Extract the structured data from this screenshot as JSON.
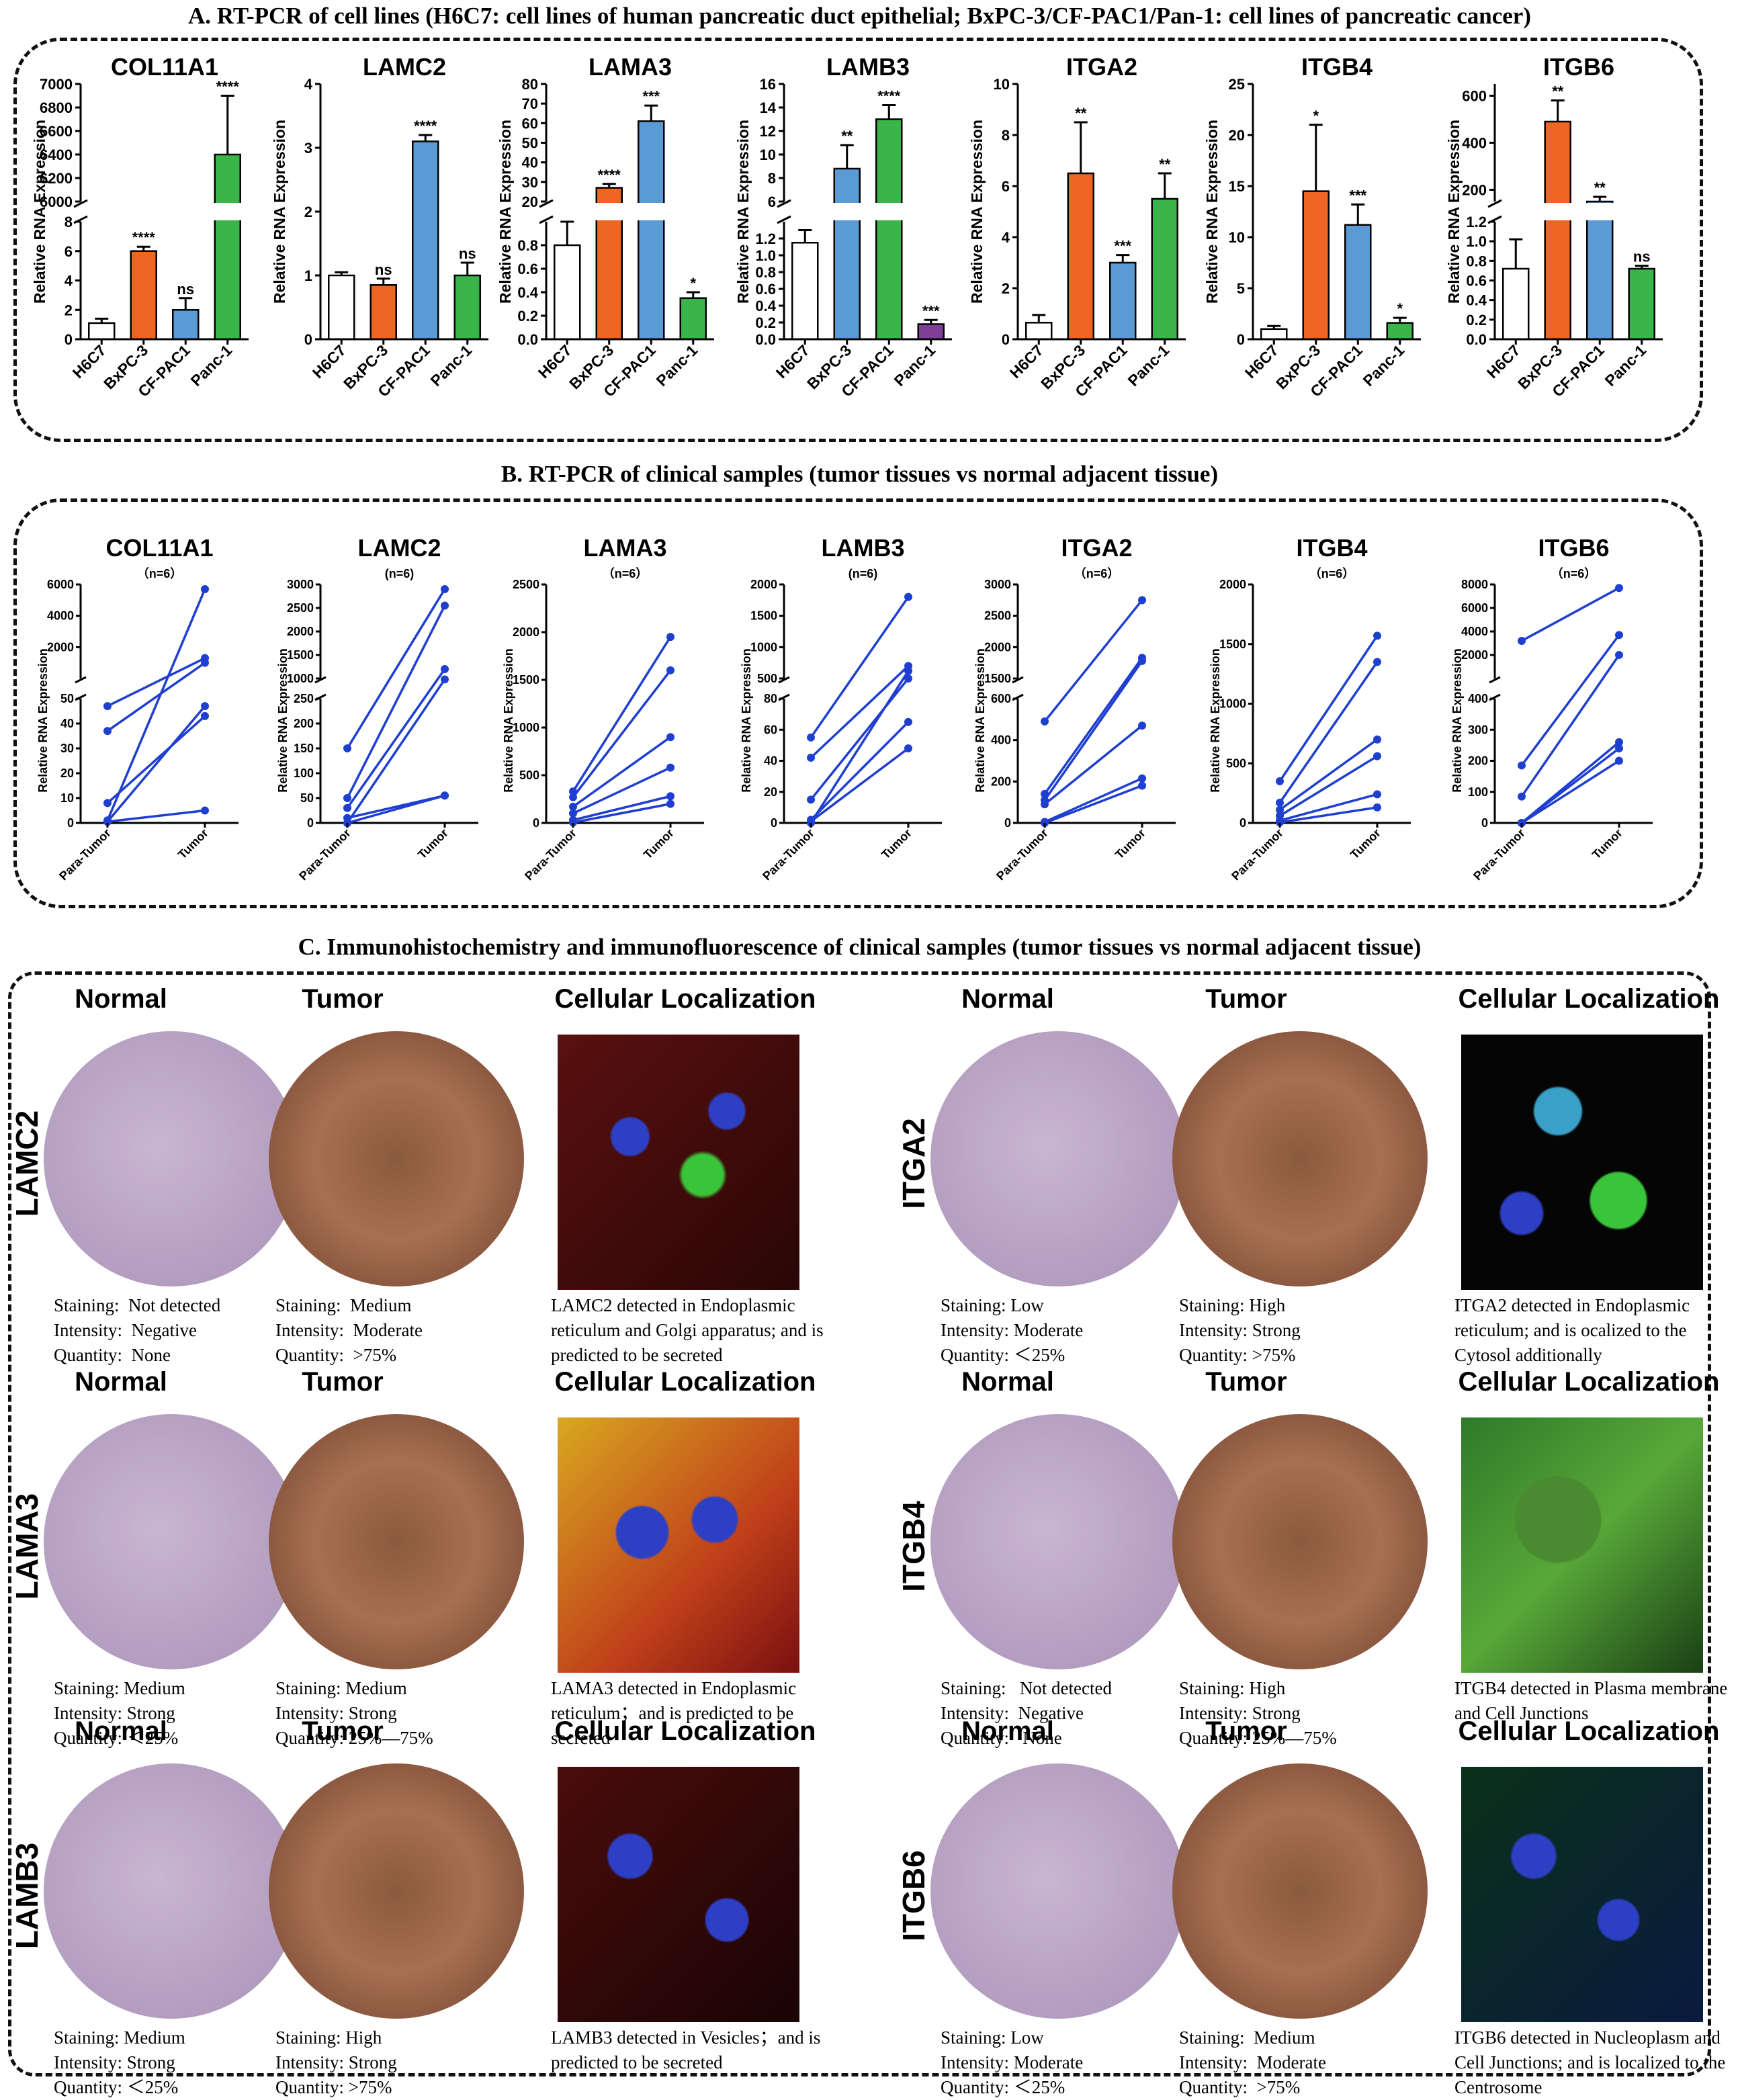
{
  "sections": {
    "a_title": "A. RT-PCR of cell lines (H6C7: cell lines of human pancreatic duct epithelial; BxPC-3/CF-PAC1/Pan-1: cell lines of pancreatic cancer)",
    "b_title": "B. RT-PCR of clinical samples (tumor tissues vs normal adjacent tissue)",
    "c_title": "C. Immunohistochemistry and immunofluorescence of clinical samples (tumor tissues vs normal adjacent tissue)"
  },
  "chart_data": [
    {
      "type": "bar",
      "panel": "A",
      "title": "COL11A1",
      "ylabel": "Relative RNA Expression",
      "categories": [
        "H6C7",
        "BxPC-3",
        "CF-PAC1",
        "Panc-1"
      ],
      "values": [
        1.1,
        6.0,
        2.0,
        6400
      ],
      "errors": [
        0.3,
        0.3,
        0.8,
        500
      ],
      "significance": [
        "",
        "****",
        "ns",
        "****"
      ],
      "colors": [
        "#ffffff",
        "#ef6524",
        "#5b9bd5",
        "#3ab54a"
      ],
      "broken_axis": {
        "lower_range": [
          0,
          8
        ],
        "lower_ticks": [
          "0",
          "2",
          "4",
          "6",
          "8"
        ],
        "upper_range": [
          6000,
          7000
        ],
        "upper_ticks": [
          "6000",
          "6200",
          "6400",
          "6600",
          "6800",
          "7000"
        ]
      }
    },
    {
      "type": "bar",
      "panel": "A",
      "title": "LAMC2",
      "ylabel": "Relative RNA Expression",
      "categories": [
        "H6C7",
        "BxPC-3",
        "CF-PAC1",
        "Panc-1"
      ],
      "values": [
        1.0,
        0.85,
        3.1,
        1.0
      ],
      "errors": [
        0.05,
        0.1,
        0.1,
        0.2
      ],
      "significance": [
        "",
        "ns",
        "****",
        "ns"
      ],
      "colors": [
        "#ffffff",
        "#ef6524",
        "#5b9bd5",
        "#3ab54a"
      ],
      "ylim": [
        0,
        4
      ],
      "ticks": [
        "0",
        "1",
        "2",
        "3",
        "4"
      ]
    },
    {
      "type": "bar",
      "panel": "A",
      "title": "LAMA3",
      "ylabel": "Relative RNA Expression",
      "categories": [
        "H6C7",
        "BxPC-3",
        "CF-PAC1",
        "Panc-1"
      ],
      "values": [
        0.8,
        27,
        61,
        0.35
      ],
      "errors": [
        0.2,
        2,
        8,
        0.05
      ],
      "significance": [
        "",
        "****",
        "***",
        "*"
      ],
      "colors": [
        "#ffffff",
        "#ef6524",
        "#5b9bd5",
        "#3ab54a"
      ],
      "broken_axis": {
        "lower_range": [
          0,
          1.0
        ],
        "lower_ticks": [
          "0.0",
          "0.2",
          "0.4",
          "0.6",
          "0.8"
        ],
        "upper_range": [
          20,
          80
        ],
        "upper_ticks": [
          "20",
          "30",
          "40",
          "50",
          "60",
          "70",
          "80"
        ]
      }
    },
    {
      "type": "bar",
      "panel": "A",
      "title": "LAMB3",
      "ylabel": "Relative RNA Expression",
      "categories": [
        "H6C7",
        "BxPC-3",
        "CF-PAC1",
        "Panc-1"
      ],
      "values": [
        1.15,
        8.8,
        13,
        0.18
      ],
      "errors": [
        0.15,
        2,
        1.2,
        0.05
      ],
      "significance": [
        "",
        "**",
        "****",
        "***"
      ],
      "colors": [
        "#ffffff",
        "#5b9bd5",
        "#3ab54a",
        "#7e3f98"
      ],
      "broken_axis": {
        "lower_range": [
          0,
          1.4
        ],
        "lower_ticks": [
          "0.0",
          "0.2",
          "0.4",
          "0.6",
          "0.8",
          "1.0",
          "1.2"
        ],
        "upper_range": [
          6,
          16
        ],
        "upper_ticks": [
          "6",
          "8",
          "10",
          "12",
          "14",
          "16"
        ]
      }
    },
    {
      "type": "bar",
      "panel": "A",
      "title": "ITGA2",
      "ylabel": "Relative RNA Expression",
      "categories": [
        "H6C7",
        "BxPC-3",
        "CF-PAC1",
        "Panc-1"
      ],
      "values": [
        0.65,
        6.5,
        3.0,
        5.5
      ],
      "errors": [
        0.3,
        2,
        0.3,
        1
      ],
      "significance": [
        "",
        "**",
        "***",
        "**"
      ],
      "colors": [
        "#ffffff",
        "#ef6524",
        "#5b9bd5",
        "#3ab54a"
      ],
      "ylim": [
        0,
        10
      ],
      "ticks": [
        "0",
        "2",
        "4",
        "6",
        "8",
        "10"
      ]
    },
    {
      "type": "bar",
      "panel": "A",
      "title": "ITGB4",
      "ylabel": "Relative RNA Expression",
      "categories": [
        "H6C7",
        "BxPC-3",
        "CF-PAC1",
        "Panc-1"
      ],
      "values": [
        1.0,
        14.5,
        11.2,
        1.6
      ],
      "errors": [
        0.3,
        6.5,
        2,
        0.5
      ],
      "significance": [
        "",
        "*",
        "***",
        "*"
      ],
      "colors": [
        "#ffffff",
        "#ef6524",
        "#5b9bd5",
        "#3ab54a"
      ],
      "ylim": [
        0,
        25
      ],
      "ticks": [
        "0",
        "5",
        "10",
        "15",
        "20",
        "25"
      ]
    },
    {
      "type": "bar",
      "panel": "A",
      "title": "ITGB6",
      "ylabel": "Relative RNA Expression",
      "categories": [
        "H6C7",
        "BxPC-3",
        "CF-PAC1",
        "Panc-1"
      ],
      "values": [
        0.72,
        490,
        150,
        0.72
      ],
      "errors": [
        0.3,
        90,
        20,
        0.03
      ],
      "significance": [
        "",
        "**",
        "**",
        "ns"
      ],
      "colors": [
        "#ffffff",
        "#ef6524",
        "#5b9bd5",
        "#3ab54a"
      ],
      "broken_axis": {
        "lower_range": [
          0,
          1.2
        ],
        "lower_ticks": [
          "0.0",
          "0.2",
          "0.4",
          "0.6",
          "0.8",
          "1.0",
          "1.2"
        ],
        "upper_range": [
          150,
          650
        ],
        "upper_ticks": [
          "200",
          "400",
          "600"
        ]
      }
    },
    {
      "type": "line",
      "panel": "B",
      "title": "COL11A1",
      "subtitle": "（n=6）",
      "ylabel": "Relative RNA Expression",
      "categories": [
        "Para-Tumor",
        "Tumor"
      ],
      "pairs": [
        [
          1,
          5700
        ],
        [
          37,
          1000
        ],
        [
          47,
          1300
        ],
        [
          0.5,
          47
        ],
        [
          8,
          43
        ],
        [
          0.5,
          5
        ]
      ],
      "broken_axis": {
        "lower_range": [
          0,
          50
        ],
        "lower_ticks": [
          "0",
          "10",
          "20",
          "30",
          "40",
          "50"
        ],
        "upper_range": [
          0,
          6000
        ],
        "upper_ticks": [
          "2000",
          "4000",
          "6000"
        ]
      }
    },
    {
      "type": "line",
      "panel": "B",
      "title": "LAMC2",
      "subtitle": "(n=6)",
      "ylabel": "Relative RNA Expression",
      "categories": [
        "Para-Tumor",
        "Tumor"
      ],
      "pairs": [
        [
          150,
          2900
        ],
        [
          50,
          2550
        ],
        [
          30,
          1200
        ],
        [
          0,
          980
        ],
        [
          0,
          55
        ],
        [
          10,
          55
        ]
      ],
      "broken_axis": {
        "lower_range": [
          0,
          250
        ],
        "lower_ticks": [
          "0",
          "50",
          "100",
          "150",
          "200",
          "250"
        ],
        "upper_range": [
          1000,
          3000
        ],
        "upper_ticks": [
          "1000",
          "1500",
          "2000",
          "2500",
          "3000"
        ]
      }
    },
    {
      "type": "line",
      "panel": "B",
      "title": "LAMA3",
      "subtitle": "（n=6）",
      "ylabel": "Relative RNA Expression",
      "categories": [
        "Para-Tumor",
        "Tumor"
      ],
      "pairs": [
        [
          330,
          1950
        ],
        [
          270,
          1600
        ],
        [
          170,
          900
        ],
        [
          100,
          580
        ],
        [
          30,
          280
        ],
        [
          5,
          200
        ]
      ],
      "ylim": [
        0,
        2500
      ],
      "ticks": [
        "0",
        "500",
        "1000",
        "1500",
        "2000",
        "2500"
      ]
    },
    {
      "type": "line",
      "panel": "B",
      "title": "LAMB3",
      "subtitle": "(n=6)",
      "ylabel": "Relative RNA Expression",
      "categories": [
        "Para-Tumor",
        "Tumor"
      ],
      "pairs": [
        [
          55,
          1800
        ],
        [
          42,
          700
        ],
        [
          15,
          500
        ],
        [
          2,
          65
        ],
        [
          1,
          48
        ],
        [
          0,
          620
        ]
      ],
      "broken_axis": {
        "lower_range": [
          0,
          80
        ],
        "lower_ticks": [
          "0",
          "20",
          "40",
          "60",
          "80"
        ],
        "upper_range": [
          500,
          2000
        ],
        "upper_ticks": [
          "500",
          "1000",
          "1500",
          "2000"
        ]
      }
    },
    {
      "type": "line",
      "panel": "B",
      "title": "ITGA2",
      "subtitle": "（n=6）",
      "ylabel": "Relative RNA Expression",
      "categories": [
        "Para-Tumor",
        "Tumor"
      ],
      "pairs": [
        [
          490,
          2750
        ],
        [
          140,
          1830
        ],
        [
          110,
          1780
        ],
        [
          90,
          470
        ],
        [
          5,
          215
        ],
        [
          0,
          180
        ]
      ],
      "broken_axis": {
        "lower_range": [
          0,
          600
        ],
        "lower_ticks": [
          "0",
          "200",
          "400",
          "600"
        ],
        "upper_range": [
          1500,
          3000
        ],
        "upper_ticks": [
          "1500",
          "2000",
          "2500",
          "3000"
        ]
      }
    },
    {
      "type": "line",
      "panel": "B",
      "title": "ITGB4",
      "subtitle": "（n=6）",
      "ylabel": "Relative RNA Expression",
      "categories": [
        "Para-Tumor",
        "Tumor"
      ],
      "pairs": [
        [
          350,
          1570
        ],
        [
          170,
          1350
        ],
        [
          110,
          700
        ],
        [
          60,
          560
        ],
        [
          20,
          240
        ],
        [
          5,
          130
        ]
      ],
      "ylim": [
        0,
        2000
      ],
      "ticks": [
        "0",
        "500",
        "1000",
        "1500",
        "2000"
      ]
    },
    {
      "type": "line",
      "panel": "B",
      "title": "ITGB6",
      "subtitle": "（n=6）",
      "ylabel": "Relative RNA Expression",
      "categories": [
        "Para-Tumor",
        "Tumor"
      ],
      "pairs": [
        [
          3200,
          7700
        ],
        [
          185,
          3700
        ],
        [
          85,
          2000
        ],
        [
          0,
          260
        ],
        [
          0,
          240
        ],
        [
          0,
          200
        ]
      ],
      "broken_axis": {
        "lower_range": [
          0,
          400
        ],
        "lower_ticks": [
          "0",
          "100",
          "200",
          "300",
          "400"
        ],
        "upper_range": [
          0,
          8000
        ],
        "upper_ticks": [
          "2000",
          "4000",
          "6000",
          "8000"
        ]
      }
    }
  ],
  "ihc": {
    "col_normal": "Normal",
    "col_tumor": "Tumor",
    "col_loc": "Cellular Localization",
    "rows": [
      {
        "gene": "LAMC2",
        "normal": "Staining:  Not detected\nIntensity:  Negative\nQuantity:  None",
        "tumor": "Staining:  Medium\nIntensity:  Moderate\nQuantity:  >75%",
        "loc": "LAMC2 detected in Endoplasmic reticulum and Golgi apparatus; and is predicted to be secreted"
      },
      {
        "gene": "ITGA2",
        "normal": "Staining: Low\nIntensity: Moderate\nQuantity: ＜25%",
        "tumor": "Staining: High\nIntensity: Strong\nQuantity: >75%",
        "loc": "ITGA2 detected in Endoplasmic reticulum;  and is ocalized to the Cytosol additionally"
      },
      {
        "gene": "LAMA3",
        "normal": "Staining: Medium\nIntensity: Strong\nQuantity: ＜25%",
        "tumor": "Staining: Medium\nIntensity: Strong\nQuantity: 25%—75%",
        "loc": "LAMA3 detected in Endoplasmic reticulum；and is predicted to be secreted"
      },
      {
        "gene": "ITGB4",
        "normal": "Staining:   Not detected\nIntensity:  Negative\nQuantity:   None",
        "tumor": "Staining: High\nIntensity: Strong\nQuantity: 25%—75%",
        "loc": "ITGB4 detected in Plasma membrane and Cell Junctions"
      },
      {
        "gene": "LAMB3",
        "normal": "Staining: Medium\nIntensity: Strong\nQuantity: ＜25%",
        "tumor": "Staining: High\nIntensity: Strong\nQuantity: >75%",
        "loc": "LAMB3 detected in Vesicles；and is predicted to be secreted"
      },
      {
        "gene": "ITGB6",
        "normal": "Staining: Low\nIntensity: Moderate\nQuantity: ＜25%",
        "tumor": "Staining:  Medium\nIntensity:  Moderate\nQuantity:  >75%",
        "loc": "ITGB6 detected in Nucleoplasm and Cell Junctions; and is localized to the Centrosome"
      }
    ]
  },
  "colors": {
    "white": "#ffffff",
    "orange": "#ef6524",
    "blue": "#5b9bd5",
    "green": "#3ab54a",
    "purple": "#7e3f98",
    "line_blue": "#1f3fd1"
  }
}
